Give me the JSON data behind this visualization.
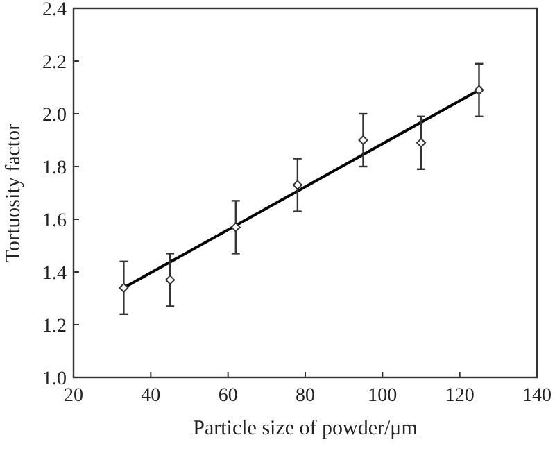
{
  "chart_data": {
    "type": "scatter",
    "xlabel": "Particle size of powder/μm",
    "ylabel": "Tortuosity factor",
    "xlim": [
      20,
      140
    ],
    "xticks": [
      20,
      40,
      60,
      80,
      100,
      120,
      140
    ],
    "ylim": [
      1.0,
      2.4
    ],
    "yticks": [
      {
        "value": 1.0,
        "label": "1.0"
      },
      {
        "value": 1.2,
        "label": "1.2"
      },
      {
        "value": 1.4,
        "label": "1.4"
      },
      {
        "value": 1.6,
        "label": "1.6"
      },
      {
        "value": 1.8,
        "label": "1.8"
      },
      {
        "value": 2.0,
        "label": "2.0"
      },
      {
        "value": 2.2,
        "label": "2.2"
      },
      {
        "value": 2.4,
        "label": "2.4"
      }
    ],
    "grid": false,
    "marker": "diamond",
    "series": [
      {
        "color": "#333333",
        "x": [
          33,
          45,
          62,
          78,
          95,
          110,
          125
        ],
        "values": [
          1.34,
          1.37,
          1.57,
          1.73,
          1.9,
          1.89,
          2.09
        ],
        "errors": [
          0.1,
          0.1,
          0.1,
          0.1,
          0.1,
          0.1,
          0.1
        ]
      },
      {
        "type": "line",
        "color": "#000000",
        "x": [
          33,
          125
        ],
        "values": [
          1.34,
          2.09
        ],
        "marker": "none",
        "line_style": "solid"
      }
    ]
  }
}
